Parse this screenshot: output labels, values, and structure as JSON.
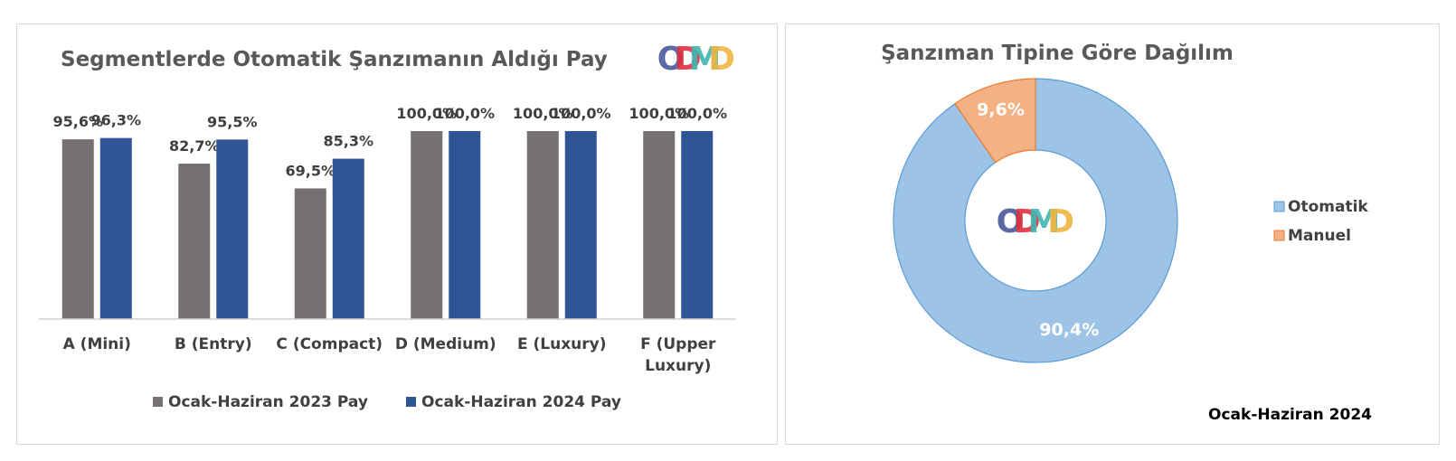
{
  "brand": {
    "logo_text": "ODMD",
    "logo_letters": [
      {
        "ch": "O",
        "color": "#4a5a9a"
      },
      {
        "ch": "D",
        "color": "#e0303c"
      },
      {
        "ch": "M",
        "color": "#3fb6b0"
      },
      {
        "ch": "D",
        "color": "#f0b440"
      }
    ]
  },
  "chart_data": [
    {
      "type": "bar",
      "title": "Segmentlerde Otomatik Şanzımanın Aldığı Pay",
      "categories": [
        "A (Mini)",
        "B (Entry)",
        "C (Compact)",
        "D (Medium)",
        "E (Luxury)",
        "F (Upper Luxury)"
      ],
      "category_lines": [
        [
          "A (Mini)"
        ],
        [
          "B (Entry)"
        ],
        [
          "C (Compact)"
        ],
        [
          "D (Medium)"
        ],
        [
          "E (Luxury)"
        ],
        [
          "F (Upper",
          "Luxury)"
        ]
      ],
      "series": [
        {
          "name": "Ocak-Haziran 2023 Pay",
          "color": "#767171",
          "values": [
            95.6,
            82.7,
            69.5,
            100.0,
            100.0,
            100.0
          ],
          "labels": [
            "95,6%",
            "82,7%",
            "69,5%",
            "100,0%",
            "100,0%",
            "100,0%"
          ]
        },
        {
          "name": "Ocak-Haziran 2024 Pay",
          "color": "#2f5597",
          "values": [
            96.3,
            95.5,
            85.3,
            100.0,
            100.0,
            100.0
          ],
          "labels": [
            "96,3%",
            "95,5%",
            "85,3%",
            "100,0%",
            "100,0%",
            "100,0%"
          ]
        }
      ],
      "ylim": [
        0,
        100
      ],
      "grid": false,
      "legend": "bottom"
    },
    {
      "type": "pie",
      "subtype": "doughnut",
      "title": "Şanzıman Tipine Göre Dağılım",
      "slices": [
        {
          "name": "Otomatik",
          "value": 90.4,
          "label": "90,4%",
          "color": "#9dc3e6"
        },
        {
          "name": "Manuel",
          "value": 9.6,
          "label": "9,6%",
          "color": "#f4b183"
        }
      ],
      "legend": "right",
      "footnote": "Ocak-Haziran 2024"
    }
  ]
}
